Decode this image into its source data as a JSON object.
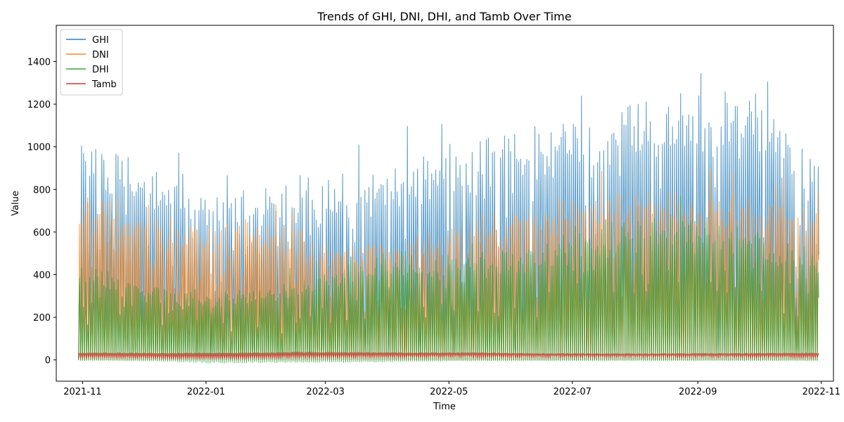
{
  "chart_data": {
    "type": "line",
    "title": "Trends of GHI, DNI, DHI, and Tamb Over Time",
    "xlabel": "Time",
    "ylabel": "Value",
    "x_range": [
      "2021-10-19",
      "2022-11-07"
    ],
    "ylim": [
      -100,
      1570
    ],
    "x_ticks": [
      {
        "date": "2021-11-01",
        "label": "2021-11"
      },
      {
        "date": "2022-01-01",
        "label": "2022-01"
      },
      {
        "date": "2022-03-01",
        "label": "2022-03"
      },
      {
        "date": "2022-05-01",
        "label": "2022-05"
      },
      {
        "date": "2022-07-01",
        "label": "2022-07"
      },
      {
        "date": "2022-09-01",
        "label": "2022-09"
      },
      {
        "date": "2022-11-01",
        "label": "2022-11"
      }
    ],
    "y_ticks": [
      0,
      200,
      400,
      600,
      800,
      1000,
      1200,
      1400
    ],
    "grid": false,
    "legend_position": "top-left",
    "data_start": "2021-10-30",
    "data_end": "2022-10-30",
    "x_envelope": [
      "2021-10-30",
      "2021-11-15",
      "2021-12-01",
      "2021-12-15",
      "2022-01-01",
      "2022-01-15",
      "2022-02-01",
      "2022-02-15",
      "2022-03-01",
      "2022-03-15",
      "2022-04-01",
      "2022-04-15",
      "2022-05-01",
      "2022-05-15",
      "2022-06-01",
      "2022-06-15",
      "2022-07-01",
      "2022-07-15",
      "2022-08-01",
      "2022-08-15",
      "2022-09-01",
      "2022-09-15",
      "2022-10-01",
      "2022-10-15",
      "2022-10-30"
    ],
    "series": [
      {
        "name": "GHI",
        "color": "#1f77b4",
        "daily_max": [
          1100,
          1030,
          950,
          900,
          780,
          800,
          830,
          870,
          880,
          920,
          950,
          1000,
          1050,
          1060,
          1100,
          1150,
          1200,
          1230,
          1250,
          1270,
          1280,
          1300,
          1250,
          1180,
          1000
        ],
        "daily_min": [
          0,
          0,
          0,
          0,
          0,
          0,
          0,
          0,
          0,
          0,
          0,
          0,
          0,
          0,
          0,
          0,
          0,
          0,
          0,
          0,
          0,
          0,
          0,
          0,
          0
        ]
      },
      {
        "name": "DNI",
        "color": "#ff7f0e",
        "daily_max": [
          800,
          790,
          720,
          680,
          700,
          690,
          660,
          620,
          580,
          570,
          590,
          620,
          640,
          660,
          700,
          760,
          800,
          810,
          820,
          820,
          830,
          840,
          820,
          780,
          700
        ],
        "daily_min": [
          0,
          0,
          0,
          0,
          0,
          0,
          0,
          0,
          0,
          0,
          0,
          0,
          0,
          0,
          0,
          0,
          0,
          0,
          0,
          0,
          0,
          0,
          0,
          0,
          0
        ]
      },
      {
        "name": "DHI",
        "color": "#2ca02c",
        "daily_max": [
          470,
          420,
          380,
          350,
          330,
          330,
          360,
          400,
          440,
          480,
          520,
          510,
          500,
          520,
          540,
          560,
          620,
          660,
          700,
          690,
          680,
          660,
          620,
          560,
          520
        ],
        "daily_min": [
          -3,
          -3,
          -5,
          -8,
          -15,
          -15,
          -14,
          -12,
          -12,
          -12,
          -10,
          -8,
          -6,
          -5,
          -5,
          -4,
          -4,
          -4,
          -4,
          -4,
          -4,
          -4,
          -4,
          -4,
          -4
        ]
      },
      {
        "name": "Tamb",
        "color": "#d62728",
        "daily_max": [
          33,
          33,
          32,
          31,
          32,
          32,
          34,
          36,
          35,
          35,
          34,
          33,
          34,
          34,
          31,
          30,
          30,
          29,
          29,
          30,
          30,
          30,
          31,
          32,
          32
        ],
        "daily_min": [
          14,
          14,
          12,
          10,
          9,
          10,
          12,
          14,
          15,
          16,
          17,
          18,
          18,
          19,
          20,
          19,
          19,
          19,
          19,
          19,
          19,
          19,
          18,
          17,
          16
        ]
      }
    ]
  }
}
